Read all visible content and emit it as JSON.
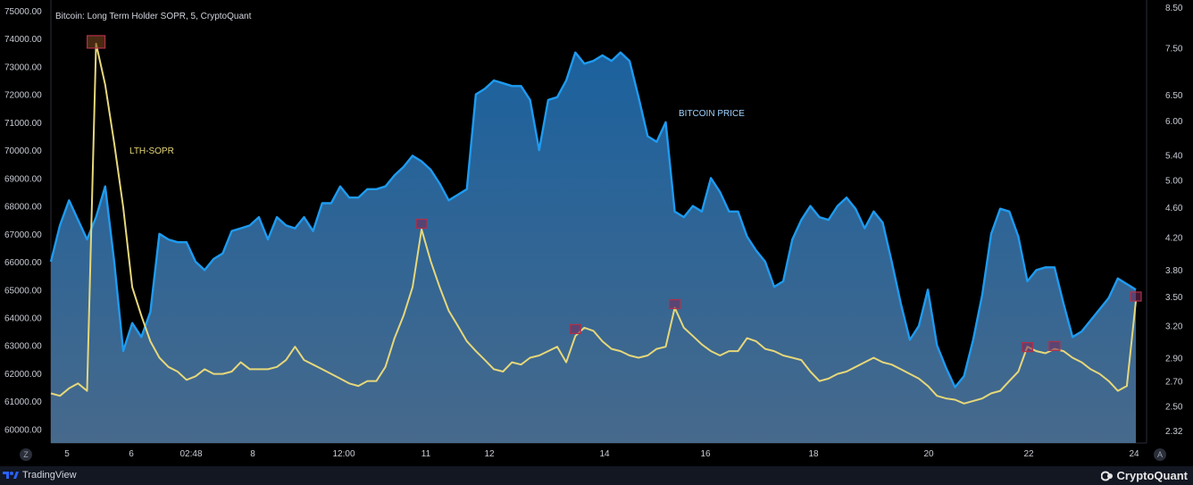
{
  "title": "Bitcoin: Long Term Holder SOPR, 5, CryptoQuant",
  "labels": {
    "price": "BITCOIN PRICE",
    "sopr": "LTH-SOPR"
  },
  "colors": {
    "price_line": "#1e9bf0",
    "sopr_line": "#e6d77a",
    "marker": "#b0304a",
    "background": "#000000"
  },
  "footer": {
    "left": "TradingView",
    "right": "CryptoQuant",
    "left_icon": "tradingview-logo",
    "right_icon": "cryptoquant-logo"
  },
  "controls": {
    "left": "Z",
    "right": "A"
  },
  "chart_data": {
    "type": "line",
    "title": "Bitcoin: Long Term Holder SOPR, 5, CryptoQuant",
    "x_ticks": [
      "5",
      "6",
      "02:48",
      "8",
      "12:00",
      "11",
      "12",
      "14",
      "16",
      "18",
      "20",
      "22",
      "24"
    ],
    "y_left_ticks": [
      "75000.00",
      "74000.00",
      "73000.00",
      "72000.00",
      "71000.00",
      "70000.00",
      "69000.00",
      "68000.00",
      "67000.00",
      "66000.00",
      "65000.00",
      "64000.00",
      "63000.00",
      "62000.00",
      "61000.00",
      "60000.00"
    ],
    "y_right_ticks": [
      "8.50",
      "7.50",
      "6.50",
      "6.00",
      "5.40",
      "5.00",
      "4.60",
      "4.20",
      "3.80",
      "3.50",
      "3.20",
      "2.90",
      "2.70",
      "2.50",
      "2.32"
    ],
    "ylim_left": [
      59500,
      75000
    ],
    "ylim_right": [
      2.32,
      8.5
    ],
    "right_axis": "log",
    "series": [
      {
        "name": "BITCOIN PRICE",
        "axis": "left",
        "x": [
          0,
          1,
          2,
          3,
          4,
          5,
          6,
          7,
          8,
          9,
          10,
          11,
          12,
          13,
          14,
          15,
          16,
          17,
          18,
          19,
          20,
          21,
          22,
          23,
          24,
          25,
          26,
          27,
          28,
          29,
          30,
          31,
          32,
          33,
          34,
          35,
          36,
          37,
          38,
          39,
          40,
          41,
          42,
          43,
          44,
          45,
          46,
          47,
          48,
          49,
          50,
          51,
          52,
          53,
          54,
          55,
          56,
          57,
          58,
          59,
          60,
          61,
          62,
          63,
          64,
          65,
          66,
          67,
          68,
          69,
          70,
          71,
          72,
          73,
          74,
          75,
          76,
          77,
          78,
          79,
          80,
          81,
          82,
          83,
          84,
          85,
          86,
          87,
          88,
          89,
          90,
          91,
          92,
          93,
          94,
          95,
          96,
          97,
          98,
          99,
          100,
          101,
          102,
          103,
          104,
          105,
          106,
          107,
          108,
          109,
          110,
          111,
          112,
          113,
          114,
          115,
          116,
          117,
          118,
          119,
          120
        ],
        "values": [
          66000,
          67300,
          68200,
          67500,
          66800,
          67600,
          68700,
          66000,
          62800,
          63800,
          63300,
          64200,
          67000,
          66800,
          66700,
          66700,
          66000,
          65700,
          66100,
          66300,
          67100,
          67200,
          67300,
          67600,
          66800,
          67600,
          67300,
          67200,
          67600,
          67100,
          68100,
          68100,
          68700,
          68300,
          68300,
          68600,
          68600,
          68700,
          69100,
          69400,
          69800,
          69600,
          69300,
          68800,
          68200,
          68400,
          68600,
          72000,
          72200,
          72500,
          72400,
          72300,
          72300,
          71800,
          70000,
          71800,
          71900,
          72500,
          73500,
          73100,
          73200,
          73400,
          73200,
          73500,
          73200,
          71900,
          70500,
          70300,
          71000,
          67800,
          67600,
          68000,
          67800,
          69000,
          68500,
          67800,
          67800,
          66900,
          66400,
          66000,
          65100,
          65300,
          66800,
          67500,
          68000,
          67600,
          67500,
          68000,
          68300,
          67900,
          67200,
          67800,
          67400,
          66000,
          64500,
          63200,
          63700,
          65000,
          63000,
          62200,
          61500,
          61900,
          63200,
          64800,
          67000,
          67900,
          67800,
          66900,
          65300,
          65700,
          65800,
          65800,
          64500,
          63300,
          63500,
          63900,
          64300,
          64700,
          65400,
          65200,
          65000
        ]
      },
      {
        "name": "LTH-SOPR",
        "axis": "right",
        "x": [
          0,
          1,
          2,
          3,
          4,
          5,
          6,
          7,
          8,
          9,
          10,
          11,
          12,
          13,
          14,
          15,
          16,
          17,
          18,
          19,
          20,
          21,
          22,
          23,
          24,
          25,
          26,
          27,
          28,
          29,
          30,
          31,
          32,
          33,
          34,
          35,
          36,
          37,
          38,
          39,
          40,
          41,
          42,
          43,
          44,
          45,
          46,
          47,
          48,
          49,
          50,
          51,
          52,
          53,
          54,
          55,
          56,
          57,
          58,
          59,
          60,
          61,
          62,
          63,
          64,
          65,
          66,
          67,
          68,
          69,
          70,
          71,
          72,
          73,
          74,
          75,
          76,
          77,
          78,
          79,
          80,
          81,
          82,
          83,
          84,
          85,
          86,
          87,
          88,
          89,
          90,
          91,
          92,
          93,
          94,
          95,
          96,
          97,
          98,
          99,
          100,
          101,
          102,
          103,
          104,
          105,
          106,
          107,
          108,
          109,
          110,
          111,
          112,
          113,
          114,
          115,
          116,
          117,
          118,
          119,
          120
        ],
        "values": [
          2.6,
          2.58,
          2.64,
          2.68,
          2.62,
          7.6,
          6.7,
          5.6,
          4.6,
          3.6,
          3.3,
          3.05,
          2.9,
          2.82,
          2.78,
          2.71,
          2.74,
          2.8,
          2.76,
          2.76,
          2.78,
          2.86,
          2.8,
          2.8,
          2.8,
          2.82,
          2.88,
          3.0,
          2.88,
          2.84,
          2.8,
          2.76,
          2.72,
          2.68,
          2.66,
          2.7,
          2.7,
          2.82,
          3.08,
          3.3,
          3.6,
          4.3,
          3.9,
          3.6,
          3.35,
          3.2,
          3.05,
          2.96,
          2.88,
          2.8,
          2.78,
          2.86,
          2.84,
          2.9,
          2.92,
          2.96,
          3.0,
          2.86,
          3.1,
          3.18,
          3.15,
          3.05,
          2.98,
          2.96,
          2.92,
          2.9,
          2.92,
          2.98,
          3.0,
          3.38,
          3.18,
          3.1,
          3.02,
          2.96,
          2.92,
          2.96,
          2.96,
          3.08,
          3.05,
          2.98,
          2.96,
          2.92,
          2.9,
          2.88,
          2.78,
          2.7,
          2.72,
          2.76,
          2.78,
          2.82,
          2.86,
          2.9,
          2.86,
          2.84,
          2.8,
          2.76,
          2.72,
          2.66,
          2.58,
          2.56,
          2.55,
          2.52,
          2.54,
          2.56,
          2.6,
          2.62,
          2.7,
          2.78,
          3.0,
          2.96,
          2.94,
          2.98,
          2.96,
          2.9,
          2.86,
          2.8,
          2.76,
          2.7,
          2.62,
          2.66,
          3.45
        ]
      }
    ],
    "markers": [
      {
        "series": "LTH-SOPR",
        "x": 5,
        "value": 7.6
      },
      {
        "series": "LTH-SOPR",
        "x": 41,
        "value": 4.35
      },
      {
        "series": "LTH-SOPR",
        "x": 58,
        "value": 3.15
      },
      {
        "series": "LTH-SOPR",
        "x": 69,
        "value": 3.4
      },
      {
        "series": "LTH-SOPR",
        "x": 108,
        "value": 2.98
      },
      {
        "series": "LTH-SOPR",
        "x": 111,
        "value": 2.99
      },
      {
        "series": "LTH-SOPR",
        "x": 120,
        "value": 3.48
      }
    ]
  }
}
